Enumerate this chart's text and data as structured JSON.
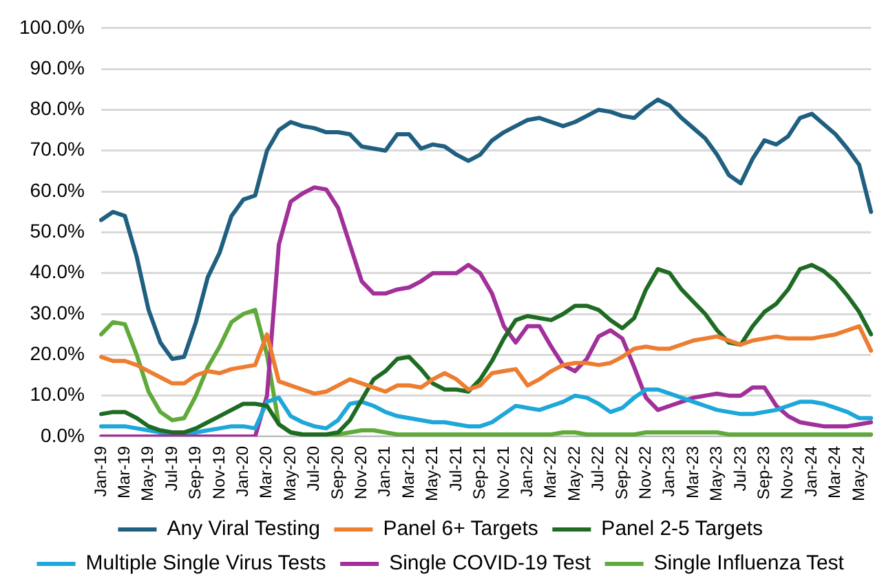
{
  "chart_data": {
    "type": "line",
    "categories": [
      "Jan-19",
      null,
      "Mar-19",
      null,
      "May-19",
      null,
      "Jul-19",
      null,
      "Sep-19",
      null,
      "Nov-19",
      null,
      "Jan-20",
      null,
      "Mar-20",
      null,
      "May-20",
      null,
      "Jul-20",
      null,
      "Sep-20",
      null,
      "Nov-20",
      null,
      "Jan-21",
      null,
      "Mar-21",
      null,
      "May-21",
      null,
      "Jul-21",
      null,
      "Sep-21",
      null,
      "Nov-21",
      null,
      "Jan-22",
      null,
      "Mar-22",
      null,
      "May-22",
      null,
      "Jul-22",
      null,
      "Sep-22",
      null,
      "Nov-22",
      null,
      "Jan-23",
      null,
      "Mar-23",
      null,
      "May-23",
      null,
      "Jul-23",
      null,
      "Sep-23",
      null,
      "Nov-23",
      null,
      "Jan-24",
      null,
      "Mar-24",
      null,
      "May-24",
      null
    ],
    "series": [
      {
        "name": "Any Viral Testing",
        "color": "#1f5f80",
        "values": [
          53,
          55,
          54,
          44,
          31,
          23,
          19,
          19.5,
          28,
          39,
          45,
          54,
          58,
          59,
          70,
          75,
          77,
          76,
          75.5,
          74.5,
          74.5,
          74,
          71,
          70.5,
          70,
          74,
          74,
          70.5,
          71.5,
          71,
          69,
          67.5,
          69,
          72.5,
          74.5,
          76,
          77.5,
          78,
          77,
          76,
          77,
          78.5,
          80,
          79.5,
          78.5,
          78,
          80.5,
          82.5,
          81,
          78,
          75.5,
          73,
          69,
          64,
          62,
          68,
          72.5,
          71.5,
          73.5,
          78,
          79,
          76.5,
          74,
          70.5,
          66.5,
          55
        ]
      },
      {
        "name": "Panel 6+ Targets",
        "color": "#ed7d31",
        "values": [
          19.5,
          18.5,
          18.5,
          17.5,
          16,
          14.5,
          13,
          13,
          15,
          16,
          15.5,
          16.5,
          17,
          17.5,
          25,
          13.5,
          12.5,
          11.5,
          10.5,
          11,
          12.5,
          14,
          13,
          12,
          11,
          12.5,
          12.5,
          12,
          14,
          15.5,
          14,
          11.5,
          12.5,
          15.5,
          16,
          16.5,
          12.5,
          14,
          16,
          17.5,
          18,
          18,
          17.5,
          18,
          19.5,
          21.5,
          22,
          21.5,
          21.5,
          22.5,
          23.5,
          24,
          24.5,
          23.5,
          22.5,
          23.5,
          24,
          24.5,
          24,
          24,
          24,
          24.5,
          25,
          26,
          27,
          21
        ]
      },
      {
        "name": "Panel 2-5 Targets",
        "color": "#1e6b23",
        "values": [
          5.5,
          6,
          6,
          4.5,
          2.5,
          1.5,
          1,
          1,
          2,
          3.5,
          5,
          6.5,
          8,
          8,
          7.5,
          3,
          1,
          0.5,
          0.5,
          0.5,
          1,
          4,
          9,
          14,
          16,
          19,
          19.5,
          16.5,
          13,
          11.5,
          11.5,
          11,
          14,
          18.5,
          24,
          28.5,
          29.5,
          29,
          28.5,
          30,
          32,
          32,
          31,
          28.5,
          26.5,
          29,
          36,
          41,
          40,
          36,
          33,
          30,
          26,
          23,
          22.5,
          27,
          30.5,
          32.5,
          36,
          41,
          42,
          40.5,
          38,
          34.5,
          30.5,
          25
        ]
      },
      {
        "name": "Multiple Single Virus Tests",
        "color": "#1ea7d9",
        "values": [
          2.5,
          2.5,
          2.5,
          2,
          1.5,
          1,
          1,
          1,
          1,
          1.5,
          2,
          2.5,
          2.5,
          2,
          8.5,
          9.5,
          5,
          3.5,
          2.5,
          2,
          4,
          8,
          8.5,
          7.5,
          6,
          5,
          4.5,
          4,
          3.5,
          3.5,
          3,
          2.5,
          2.5,
          3.5,
          5.5,
          7.5,
          7,
          6.5,
          7.5,
          8.5,
          10,
          9.5,
          8,
          6,
          7,
          9.5,
          11.5,
          11.5,
          10.5,
          9.5,
          8.5,
          7.5,
          6.5,
          6,
          5.5,
          5.5,
          6,
          6.5,
          7.5,
          8.5,
          8.5,
          8,
          7,
          6,
          4.5,
          4.5
        ]
      },
      {
        "name": "Single COVID-19 Test",
        "color": "#a1309a",
        "values": [
          0,
          0,
          0,
          0,
          0,
          0,
          0,
          0,
          0,
          0,
          0,
          0,
          0,
          0,
          10,
          47,
          57.5,
          59.5,
          61,
          60.5,
          56,
          47,
          38,
          35,
          35,
          36,
          36.5,
          38,
          40,
          40,
          40,
          42,
          40,
          35,
          27,
          23,
          27,
          27,
          22,
          17.5,
          16,
          19,
          24.5,
          26,
          24,
          17,
          9.5,
          6.5,
          7.5,
          8.5,
          9.5,
          10,
          10.5,
          10,
          10,
          12,
          12,
          7.5,
          5,
          3.5,
          3,
          2.5,
          2.5,
          2.5,
          3,
          3.5
        ]
      },
      {
        "name": "Single Influenza Test",
        "color": "#5faa3a",
        "values": [
          25,
          28,
          27.5,
          20,
          11,
          6,
          4,
          4.5,
          10,
          17,
          22,
          28,
          30,
          31,
          20,
          3,
          1,
          0.5,
          0.5,
          0.5,
          0.5,
          1,
          1.5,
          1.5,
          1,
          0.5,
          0.5,
          0.5,
          0.5,
          0.5,
          0.5,
          0.5,
          0.5,
          0.5,
          0.5,
          0.5,
          0.5,
          0.5,
          0.5,
          1,
          1,
          0.5,
          0.5,
          0.5,
          0.5,
          0.5,
          1,
          1,
          1,
          1,
          1,
          1,
          1,
          0.5,
          0.5,
          0.5,
          0.5,
          0.5,
          0.5,
          0.5,
          0.5,
          0.5,
          0.5,
          0.5,
          0.5,
          0.5
        ]
      }
    ],
    "ylim": [
      0,
      100
    ],
    "yticks": [
      {
        "value": 0,
        "label": "0.0%"
      },
      {
        "value": 10,
        "label": "10.0%"
      },
      {
        "value": 20,
        "label": "20.0%"
      },
      {
        "value": 30,
        "label": "30.0%"
      },
      {
        "value": 40,
        "label": "40.0%"
      },
      {
        "value": 50,
        "label": "50.0%"
      },
      {
        "value": 60,
        "label": "60.0%"
      },
      {
        "value": 70,
        "label": "70.0%"
      },
      {
        "value": 80,
        "label": "80.0%"
      },
      {
        "value": 90,
        "label": "90.0%"
      },
      {
        "value": 100,
        "label": "100.0%"
      }
    ],
    "grid": "y",
    "legend": "bottom",
    "marker": "none",
    "line_style": "solid"
  }
}
